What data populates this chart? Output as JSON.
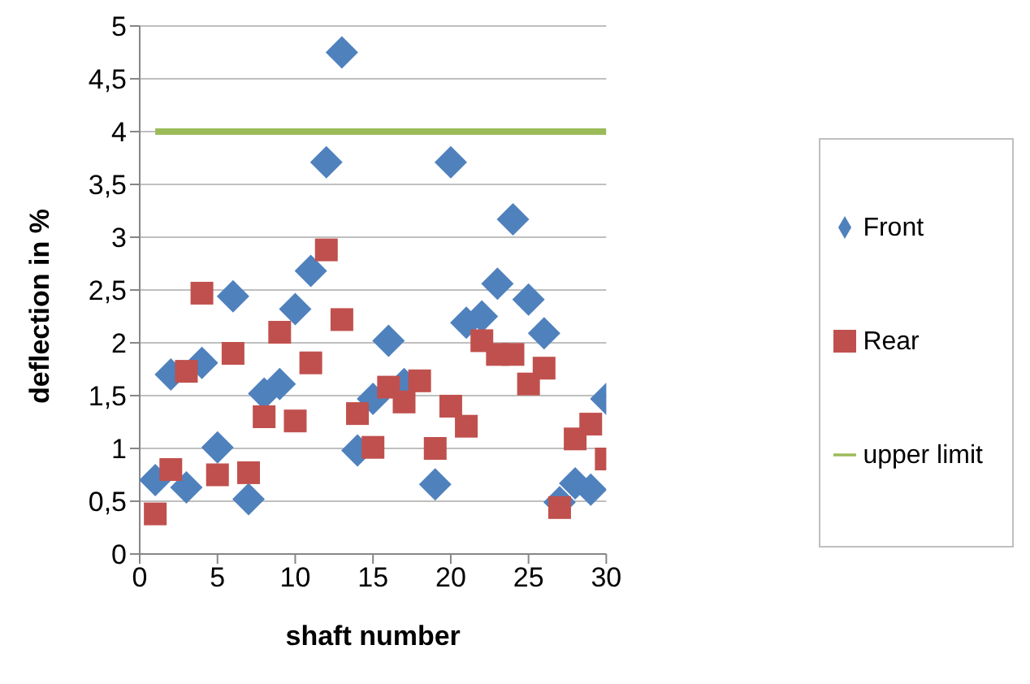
{
  "chart_data": {
    "type": "scatter",
    "xlabel": "shaft number",
    "ylabel": "deflection in %",
    "xlim": [
      0,
      30
    ],
    "xticks": [
      0,
      5,
      10,
      15,
      20,
      25,
      30
    ],
    "ylim": [
      0,
      5
    ],
    "yticks": [
      0,
      {
        "value": 0.5,
        "label": "0,5"
      },
      1,
      {
        "value": 1.5,
        "label": "1,5"
      },
      2,
      {
        "value": 2.5,
        "label": "2,5"
      },
      3,
      {
        "value": 3.5,
        "label": "3,5"
      },
      4,
      {
        "value": 4.5,
        "label": "4,5"
      },
      5
    ],
    "x": [
      1,
      2,
      3,
      4,
      5,
      6,
      7,
      8,
      9,
      10,
      11,
      12,
      13,
      14,
      15,
      16,
      17,
      18,
      19,
      20,
      21,
      22,
      23,
      24,
      25,
      26,
      27,
      28,
      29,
      30
    ],
    "grid": "y",
    "legend": "right",
    "series": [
      {
        "name": "Front",
        "color": "#4f81bd",
        "marker": "diamond",
        "values": [
          0.7,
          1.7,
          0.63,
          1.81,
          1.01,
          2.44,
          0.52,
          1.52,
          1.61,
          2.32,
          2.68,
          3.71,
          4.75,
          0.98,
          1.47,
          2.02,
          1.61,
          null,
          0.66,
          3.71,
          2.19,
          2.25,
          2.56,
          3.17,
          2.41,
          2.09,
          0.49,
          0.67,
          0.61,
          1.47
        ]
      },
      {
        "name": "Rear",
        "color": "#c0504d",
        "marker": "square",
        "values": [
          0.38,
          0.8,
          1.73,
          2.47,
          0.75,
          1.9,
          0.77,
          1.3,
          2.1,
          1.26,
          1.81,
          2.88,
          2.22,
          1.33,
          1.01,
          1.58,
          1.44,
          1.64,
          1.0,
          1.4,
          1.21,
          2.02,
          1.89,
          1.89,
          1.61,
          1.76,
          0.44,
          1.09,
          1.23,
          0.9
        ]
      },
      {
        "name": "upper limit",
        "type": "line",
        "color": "#9bbb59",
        "marker": "none",
        "line_style": "solid",
        "x": [
          1,
          30
        ],
        "values": [
          4,
          4
        ]
      }
    ]
  }
}
